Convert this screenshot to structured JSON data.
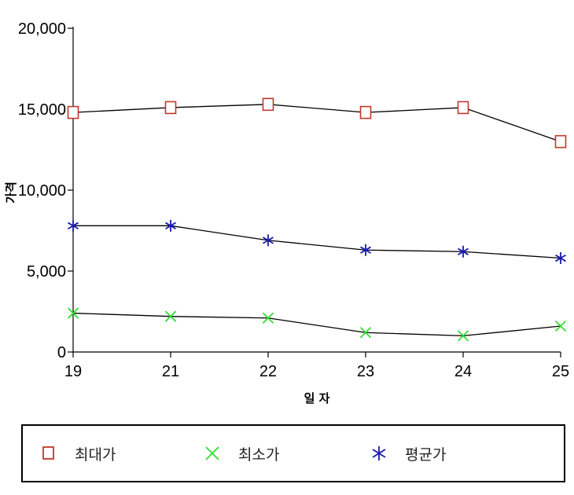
{
  "chart_data": {
    "type": "line",
    "title": "",
    "xlabel": "일 자",
    "ylabel": "가격",
    "categories": [
      "19",
      "21",
      "22",
      "23",
      "24",
      "25"
    ],
    "ylim": [
      0,
      20000
    ],
    "yticks": [
      0,
      5000,
      10000,
      15000,
      20000
    ],
    "ytick_labels": [
      "0",
      "5,000",
      "10,000",
      "15,000",
      "20,000"
    ],
    "grid": false,
    "legend_position": "bottom",
    "series": [
      {
        "name": "최대가",
        "marker": "square",
        "color": "#c0392b",
        "values": [
          14800,
          15100,
          15300,
          14800,
          15100,
          13000
        ]
      },
      {
        "name": "최소가",
        "marker": "x",
        "color": "#33dd33",
        "values": [
          2400,
          2200,
          2100,
          1200,
          1000,
          1600
        ]
      },
      {
        "name": "평균가",
        "marker": "asterisk",
        "color": "#1a1ab0",
        "values": [
          7800,
          7800,
          6900,
          6300,
          6200,
          5800
        ]
      }
    ]
  },
  "colors": {
    "line": "#000000"
  }
}
